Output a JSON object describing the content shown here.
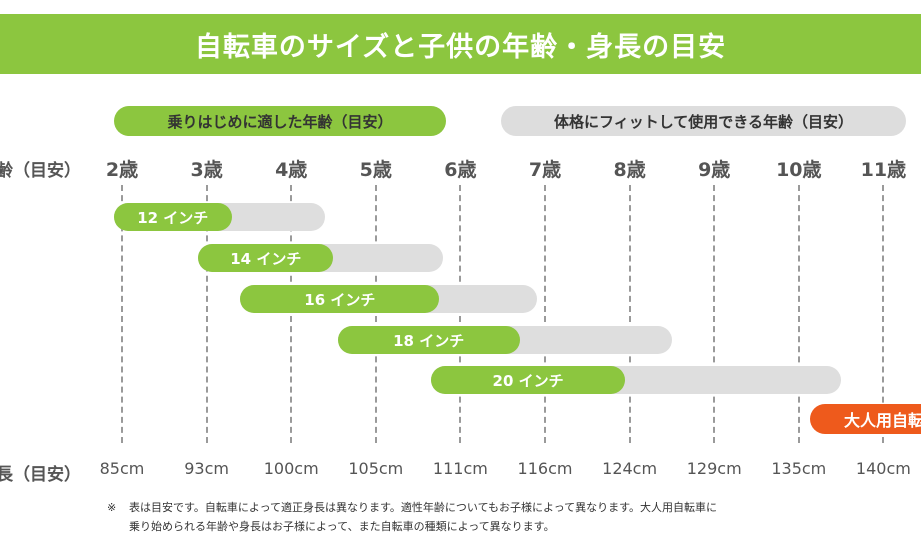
{
  "title": "自転車のサイズと子供の年齢・身長の目安",
  "legend": {
    "suitable_start": "乗りはじめに適した年齢（目安）",
    "fit_use": "体格にフィットして使用できる年齢（目安）"
  },
  "row_labels": {
    "age": "齢（目安）",
    "height": "長（目安）"
  },
  "colors": {
    "green": "#8cc63f",
    "gray": "#dedede",
    "orange": "#ee5a1c"
  },
  "chart_data": {
    "type": "bar",
    "x_ages": [
      "2歳",
      "3歳",
      "4歳",
      "5歳",
      "6歳",
      "7歳",
      "8歳",
      "9歳",
      "10歳",
      "11歳"
    ],
    "x_heights": [
      "85cm",
      "93cm",
      "100cm",
      "105cm",
      "111cm",
      "116cm",
      "124cm",
      "129cm",
      "135cm",
      "140cm"
    ],
    "age_range": [
      2,
      11
    ],
    "grid": "vertical dashed",
    "series": [
      {
        "label": "12 インチ",
        "start_age": 1.9,
        "suitable_end_age": 3.3,
        "fit_end_age": 4.4
      },
      {
        "label": "14 インチ",
        "start_age": 2.9,
        "suitable_end_age": 4.5,
        "fit_end_age": 5.8
      },
      {
        "label": "16 インチ",
        "start_age": 3.4,
        "suitable_end_age": 5.75,
        "fit_end_age": 6.9
      },
      {
        "label": "18 インチ",
        "start_age": 4.55,
        "suitable_end_age": 6.7,
        "fit_end_age": 8.5
      },
      {
        "label": "20 インチ",
        "start_age": 5.65,
        "suitable_end_age": 7.95,
        "fit_end_age": 10.5
      }
    ],
    "adult": {
      "label": "大人用自転",
      "start_age": 10.1
    }
  },
  "note": {
    "mark": "※",
    "line1": "表は目安です。自転車によって適正身長は異なります。適性年齢についてもお子様によって異なります。大人用自転車に",
    "line2": "乗り始められる年齢や身長はお子様によって、また自転車の種類によって異なります。"
  }
}
